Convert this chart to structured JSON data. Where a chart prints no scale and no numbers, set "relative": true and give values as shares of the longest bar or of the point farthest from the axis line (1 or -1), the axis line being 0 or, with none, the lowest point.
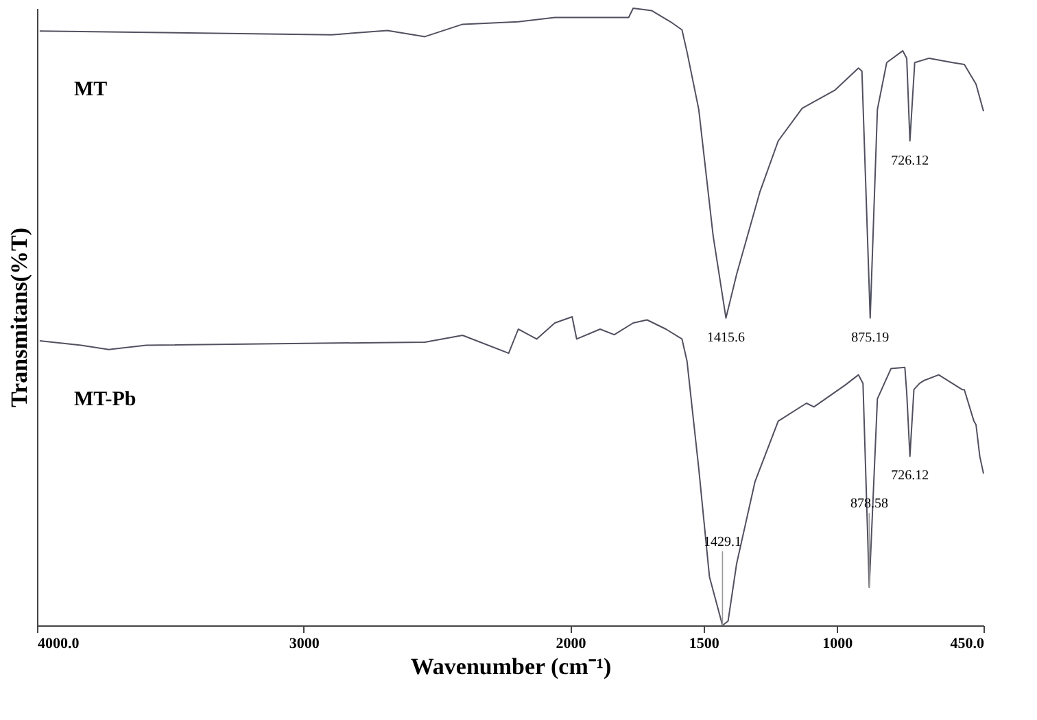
{
  "chart_data": {
    "type": "line",
    "relative": true,
    "xlabel": "Wavenumber (cm⁻¹)",
    "ylabel": "Transmitans(%T)",
    "xlim": [
      4000,
      450
    ],
    "xticks": [
      {
        "value": 4000,
        "label": "4000.0"
      },
      3000,
      2000,
      1500,
      1000,
      {
        "value": 450,
        "label": "450.0"
      }
    ],
    "marker": "none",
    "line_style": "solid",
    "series": [
      {
        "name": "MT",
        "color": "#505060",
        "x": [
          3990,
          2895,
          2686,
          2545,
          2404,
          2195,
          2058,
          1923,
          1781,
          1764,
          1694,
          1624,
          1581,
          1562,
          1518,
          1464,
          1416,
          1376,
          1289,
          1220,
          1130,
          1008,
          919,
          906,
          875,
          848,
          813,
          753,
          738,
          726,
          708,
          654,
          566,
          522,
          478,
          450
        ],
        "values": [
          0.963,
          0.957,
          0.964,
          0.954,
          0.974,
          0.978,
          0.985,
          0.985,
          0.985,
          1.0,
          0.996,
          0.978,
          0.965,
          0.929,
          0.836,
          0.631,
          0.498,
          0.569,
          0.702,
          0.785,
          0.838,
          0.867,
          0.903,
          0.898,
          0.498,
          0.836,
          0.912,
          0.931,
          0.919,
          0.785,
          0.912,
          0.919,
          0.912,
          0.909,
          0.877,
          0.833
        ]
      },
      {
        "name": "MT-Pb",
        "color": "#505060",
        "x": [
          3990,
          3835,
          3731,
          3591,
          2545,
          2404,
          2231,
          2195,
          2126,
          2058,
          1993,
          1976,
          1888,
          1835,
          1764,
          1712,
          1641,
          1581,
          1562,
          1518,
          1478,
          1429,
          1408,
          1376,
          1307,
          1220,
          1114,
          1086,
          970,
          919,
          902,
          878.6,
          848,
          797,
          745,
          738,
          726,
          711,
          690,
          672,
          618,
          530,
          522,
          486,
          478,
          464,
          450
        ],
        "values": [
          0.461,
          0.454,
          0.447,
          0.454,
          0.459,
          0.47,
          0.441,
          0.48,
          0.464,
          0.49,
          0.5,
          0.464,
          0.48,
          0.471,
          0.49,
          0.495,
          0.48,
          0.464,
          0.428,
          0.254,
          0.079,
          0.0,
          0.007,
          0.1,
          0.233,
          0.331,
          0.36,
          0.354,
          0.389,
          0.406,
          0.392,
          0.062,
          0.367,
          0.416,
          0.418,
          0.377,
          0.274,
          0.382,
          0.392,
          0.397,
          0.406,
          0.382,
          0.382,
          0.331,
          0.325,
          0.274,
          0.246
        ]
      }
    ],
    "annotations": [
      {
        "text": "1415.6",
        "x": 1416,
        "y": 0.498
      },
      {
        "text": "875.19",
        "x": 875,
        "y": 0.498
      },
      {
        "text": "726.12",
        "x": 726,
        "y": 0.785
      },
      {
        "text": "1429.1",
        "x": 1429,
        "y": 0.0
      },
      {
        "text": "878.58",
        "x": 878.6,
        "y": 0.062
      },
      {
        "text": "726.12",
        "x": 726,
        "y": 0.274
      }
    ]
  }
}
